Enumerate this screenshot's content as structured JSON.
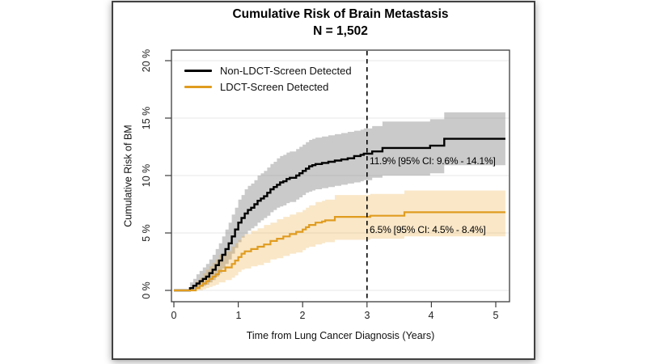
{
  "card": {
    "title": "Cumulative Risk of Brain Metastasis",
    "subtitle": "N = 1,502"
  },
  "chart_data": {
    "type": "line",
    "subtype": "step-cumulative-incidence-with-ci-bands",
    "title": "Cumulative Risk of Brain Metastasis",
    "subtitle": "N = 1,502",
    "xlabel": "Time from Lung Cancer Diagnosis (Years)",
    "ylabel": "Cumulative Risk of BM",
    "xlim": [
      0,
      5
    ],
    "ylim": [
      0,
      20
    ],
    "x_tick_values": [
      0,
      1,
      2,
      3,
      4,
      5
    ],
    "x_ticks": [
      "0",
      "1",
      "2",
      "3",
      "4",
      "5"
    ],
    "y_tick_values": [
      0,
      5,
      10,
      15,
      20
    ],
    "y_ticks": [
      "0 %",
      "5 %",
      "10 %",
      "15 %",
      "20 %"
    ],
    "grid": true,
    "grid_color": "#e7e7e7",
    "axis_color": "#3d3d3d",
    "legend_position": "top-left",
    "reference_line": {
      "x": 3,
      "style": "dashed",
      "color": "#000000"
    },
    "annotations": [
      {
        "text": "11.9% [95% CI: 9.6% - 14.1%]",
        "x": 3,
        "y": 11.2
      },
      {
        "text": "6.5% [95% CI: 4.5% - 8.4%]",
        "x": 3,
        "y": 5.2
      }
    ],
    "series": [
      {
        "name": "Non-LDCT-Screen Detected",
        "color": "#000000",
        "band_color": "rgba(128,128,128,0.42)",
        "estimate_at_3y": "11.9%",
        "ci_at_3y": "9.6% - 14.1%",
        "points": [
          {
            "t": 0,
            "v": 0,
            "lo": 0,
            "hi": 0
          },
          {
            "t": 0.25,
            "v": 0.2,
            "lo": 0,
            "hi": 0.7
          },
          {
            "t": 0.3,
            "v": 0.4,
            "lo": 0.1,
            "hi": 1.0
          },
          {
            "t": 0.35,
            "v": 0.6,
            "lo": 0.2,
            "hi": 1.4
          },
          {
            "t": 0.4,
            "v": 0.8,
            "lo": 0.3,
            "hi": 1.7
          },
          {
            "t": 0.45,
            "v": 1.0,
            "lo": 0.4,
            "hi": 2.0
          },
          {
            "t": 0.5,
            "v": 1.2,
            "lo": 0.5,
            "hi": 2.3
          },
          {
            "t": 0.55,
            "v": 1.5,
            "lo": 0.7,
            "hi": 2.7
          },
          {
            "t": 0.6,
            "v": 1.8,
            "lo": 0.9,
            "hi": 3.1
          },
          {
            "t": 0.65,
            "v": 2.2,
            "lo": 1.2,
            "hi": 3.6
          },
          {
            "t": 0.7,
            "v": 2.6,
            "lo": 1.5,
            "hi": 4.1
          },
          {
            "t": 0.75,
            "v": 3.1,
            "lo": 1.9,
            "hi": 4.7
          },
          {
            "t": 0.8,
            "v": 3.6,
            "lo": 2.3,
            "hi": 5.3
          },
          {
            "t": 0.85,
            "v": 4.1,
            "lo": 2.7,
            "hi": 5.9
          },
          {
            "t": 0.9,
            "v": 4.7,
            "lo": 3.2,
            "hi": 6.6
          },
          {
            "t": 0.95,
            "v": 5.3,
            "lo": 3.7,
            "hi": 7.2
          },
          {
            "t": 1.0,
            "v": 5.9,
            "lo": 4.2,
            "hi": 7.9
          },
          {
            "t": 1.05,
            "v": 6.3,
            "lo": 4.6,
            "hi": 8.3
          },
          {
            "t": 1.1,
            "v": 6.7,
            "lo": 4.9,
            "hi": 8.8
          },
          {
            "t": 1.15,
            "v": 7.0,
            "lo": 5.2,
            "hi": 9.1
          },
          {
            "t": 1.2,
            "v": 7.2,
            "lo": 5.4,
            "hi": 9.3
          },
          {
            "t": 1.25,
            "v": 7.5,
            "lo": 5.6,
            "hi": 9.6
          },
          {
            "t": 1.3,
            "v": 7.8,
            "lo": 5.9,
            "hi": 10.0
          },
          {
            "t": 1.35,
            "v": 8.0,
            "lo": 6.1,
            "hi": 10.2
          },
          {
            "t": 1.4,
            "v": 8.2,
            "lo": 6.3,
            "hi": 10.4
          },
          {
            "t": 1.45,
            "v": 8.5,
            "lo": 6.5,
            "hi": 10.7
          },
          {
            "t": 1.5,
            "v": 8.8,
            "lo": 6.8,
            "hi": 11.0
          },
          {
            "t": 1.55,
            "v": 9.0,
            "lo": 7.0,
            "hi": 11.2
          },
          {
            "t": 1.6,
            "v": 9.2,
            "lo": 7.2,
            "hi": 11.5
          },
          {
            "t": 1.65,
            "v": 9.4,
            "lo": 7.3,
            "hi": 11.7
          },
          {
            "t": 1.7,
            "v": 9.5,
            "lo": 7.4,
            "hi": 11.8
          },
          {
            "t": 1.75,
            "v": 9.7,
            "lo": 7.6,
            "hi": 12.0
          },
          {
            "t": 1.8,
            "v": 9.8,
            "lo": 7.7,
            "hi": 12.1
          },
          {
            "t": 1.9,
            "v": 10.0,
            "lo": 7.9,
            "hi": 12.3
          },
          {
            "t": 1.95,
            "v": 10.2,
            "lo": 8.1,
            "hi": 12.5
          },
          {
            "t": 2.0,
            "v": 10.4,
            "lo": 8.3,
            "hi": 12.7
          },
          {
            "t": 2.05,
            "v": 10.6,
            "lo": 8.5,
            "hi": 12.9
          },
          {
            "t": 2.1,
            "v": 10.8,
            "lo": 8.6,
            "hi": 13.1
          },
          {
            "t": 2.15,
            "v": 10.9,
            "lo": 8.7,
            "hi": 13.2
          },
          {
            "t": 2.2,
            "v": 11.0,
            "lo": 8.8,
            "hi": 13.3
          },
          {
            "t": 2.3,
            "v": 11.1,
            "lo": 8.9,
            "hi": 13.4
          },
          {
            "t": 2.4,
            "v": 11.2,
            "lo": 9.0,
            "hi": 13.5
          },
          {
            "t": 2.5,
            "v": 11.3,
            "lo": 9.1,
            "hi": 13.6
          },
          {
            "t": 2.6,
            "v": 11.4,
            "lo": 9.2,
            "hi": 13.7
          },
          {
            "t": 2.7,
            "v": 11.5,
            "lo": 9.3,
            "hi": 13.8
          },
          {
            "t": 2.8,
            "v": 11.7,
            "lo": 9.4,
            "hi": 13.9
          },
          {
            "t": 2.9,
            "v": 11.8,
            "lo": 9.5,
            "hi": 14.0
          },
          {
            "t": 2.95,
            "v": 11.9,
            "lo": 9.6,
            "hi": 14.1
          },
          {
            "t": 3.08,
            "v": 12.1,
            "lo": 9.8,
            "hi": 14.3
          },
          {
            "t": 3.24,
            "v": 12.4,
            "lo": 10.0,
            "hi": 14.7
          },
          {
            "t": 3.98,
            "v": 12.6,
            "lo": 10.2,
            "hi": 14.9
          },
          {
            "t": 4.2,
            "v": 13.2,
            "lo": 10.9,
            "hi": 15.5
          },
          {
            "t": 5.15,
            "v": 13.2,
            "lo": 10.9,
            "hi": 15.5
          }
        ]
      },
      {
        "name": "LDCT-Screen Detected",
        "color": "#E09C20",
        "band_color": "rgba(230,160,35,0.25)",
        "estimate_at_3y": "6.5%",
        "ci_at_3y": "4.5% - 8.4%",
        "points": [
          {
            "t": 0,
            "v": 0,
            "lo": 0,
            "hi": 0
          },
          {
            "t": 0.34,
            "v": 0.2,
            "lo": 0,
            "hi": 0.8
          },
          {
            "t": 0.4,
            "v": 0.4,
            "lo": 0,
            "hi": 1.1
          },
          {
            "t": 0.45,
            "v": 0.6,
            "lo": 0.1,
            "hi": 1.5
          },
          {
            "t": 0.5,
            "v": 0.8,
            "lo": 0.2,
            "hi": 1.8
          },
          {
            "t": 0.55,
            "v": 1.0,
            "lo": 0.3,
            "hi": 2.1
          },
          {
            "t": 0.6,
            "v": 1.2,
            "lo": 0.4,
            "hi": 2.4
          },
          {
            "t": 0.65,
            "v": 1.4,
            "lo": 0.5,
            "hi": 2.7
          },
          {
            "t": 0.7,
            "v": 1.7,
            "lo": 0.7,
            "hi": 3.1
          },
          {
            "t": 0.8,
            "v": 2.0,
            "lo": 0.9,
            "hi": 3.4
          },
          {
            "t": 0.9,
            "v": 2.3,
            "lo": 1.1,
            "hi": 3.8
          },
          {
            "t": 0.95,
            "v": 2.6,
            "lo": 1.3,
            "hi": 4.1
          },
          {
            "t": 1.0,
            "v": 2.9,
            "lo": 1.6,
            "hi": 4.4
          },
          {
            "t": 1.05,
            "v": 3.2,
            "lo": 1.8,
            "hi": 4.7
          },
          {
            "t": 1.1,
            "v": 3.4,
            "lo": 1.9,
            "hi": 4.9
          },
          {
            "t": 1.2,
            "v": 3.6,
            "lo": 2.1,
            "hi": 5.2
          },
          {
            "t": 1.3,
            "v": 3.8,
            "lo": 2.2,
            "hi": 5.4
          },
          {
            "t": 1.4,
            "v": 4.0,
            "lo": 2.4,
            "hi": 5.7
          },
          {
            "t": 1.5,
            "v": 4.3,
            "lo": 2.7,
            "hi": 5.9
          },
          {
            "t": 1.6,
            "v": 4.5,
            "lo": 2.8,
            "hi": 6.2
          },
          {
            "t": 1.7,
            "v": 4.7,
            "lo": 3.0,
            "hi": 6.4
          },
          {
            "t": 1.8,
            "v": 4.9,
            "lo": 3.2,
            "hi": 6.6
          },
          {
            "t": 1.9,
            "v": 5.1,
            "lo": 3.3,
            "hi": 6.8
          },
          {
            "t": 2.0,
            "v": 5.3,
            "lo": 3.5,
            "hi": 7.0
          },
          {
            "t": 2.05,
            "v": 5.5,
            "lo": 3.7,
            "hi": 7.2
          },
          {
            "t": 2.1,
            "v": 5.7,
            "lo": 3.8,
            "hi": 7.4
          },
          {
            "t": 2.2,
            "v": 5.9,
            "lo": 4.0,
            "hi": 7.7
          },
          {
            "t": 2.3,
            "v": 6.0,
            "lo": 4.1,
            "hi": 7.8
          },
          {
            "t": 2.35,
            "v": 6.1,
            "lo": 4.2,
            "hi": 7.9
          },
          {
            "t": 2.5,
            "v": 6.4,
            "lo": 4.4,
            "hi": 8.3
          },
          {
            "t": 3.05,
            "v": 6.5,
            "lo": 4.5,
            "hi": 8.4
          },
          {
            "t": 3.58,
            "v": 6.8,
            "lo": 4.7,
            "hi": 8.7
          },
          {
            "t": 5.15,
            "v": 6.8,
            "lo": 4.7,
            "hi": 8.7
          }
        ]
      }
    ]
  }
}
